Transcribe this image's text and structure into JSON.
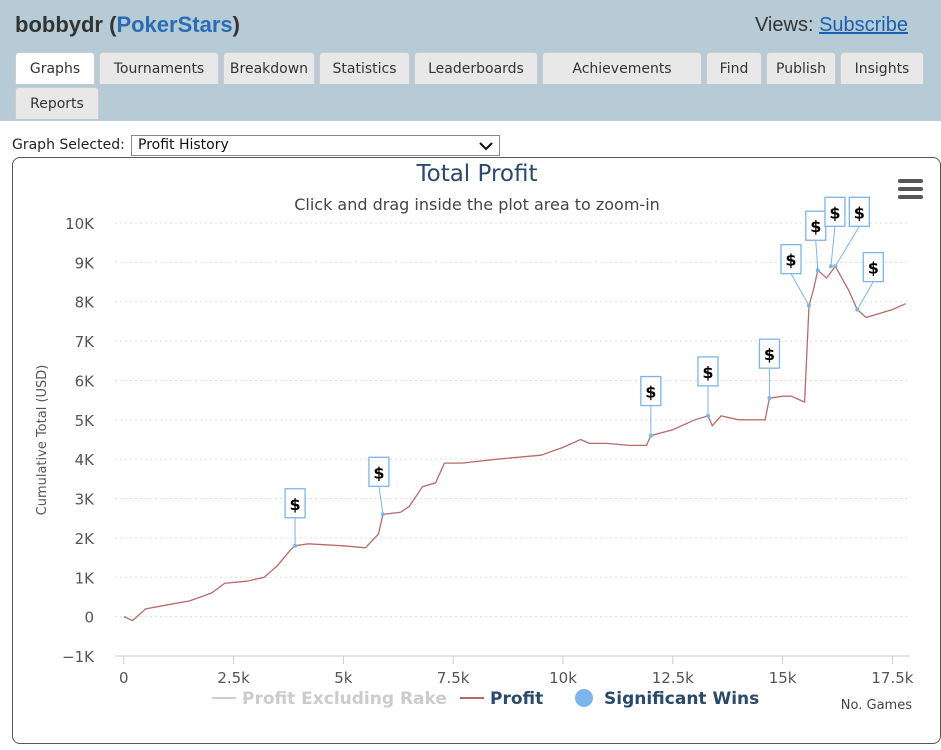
{
  "header": {
    "title_user": "bobbydr (",
    "title_site": "PokerStars",
    "title_end": ")",
    "views_label": "Views:",
    "views_link": "Subscribe"
  },
  "tabs": [
    "Graphs",
    "Tournaments",
    "Breakdown",
    "Statistics",
    "Leaderboards",
    "Achievements",
    "Find",
    "Publish",
    "Insights",
    "Reports"
  ],
  "selector": {
    "label": "Graph Selected:",
    "value": "Profit History"
  },
  "chart_data": {
    "type": "line",
    "title": "Total Profit",
    "subtitle": "Click and drag inside the plot area to zoom-in",
    "y_label": "Cumulative Total (USD)",
    "x_label": "No. Games",
    "x": [
      0,
      200,
      500,
      1000,
      1500,
      2000,
      2300,
      2800,
      3200,
      3500,
      3800,
      3900,
      4200,
      5000,
      5500,
      5800,
      5900,
      6300,
      6500,
      6800,
      7100,
      7300,
      7700,
      8500,
      9500,
      10000,
      10400,
      10600,
      11000,
      11500,
      11900,
      12000,
      12500,
      13000,
      13300,
      13400,
      13600,
      14000,
      14600,
      14700,
      15000,
      15200,
      15400,
      15500,
      15600,
      15700,
      15800,
      16000,
      16200,
      16500,
      16700,
      16900,
      17200,
      17500,
      17800
    ],
    "series": [
      {
        "name": "Profit Excluding Rake",
        "color": "#cccccc",
        "visible": false
      },
      {
        "name": "Profit",
        "color": "#b96b6b",
        "values": [
          0,
          -100,
          200,
          300,
          400,
          600,
          850,
          900,
          1000,
          1300,
          1700,
          1800,
          1850,
          1800,
          1750,
          2100,
          2600,
          2650,
          2800,
          3300,
          3400,
          3900,
          3900,
          4000,
          4100,
          4300,
          4500,
          4400,
          4400,
          4350,
          4350,
          4600,
          4750,
          5000,
          5100,
          4850,
          5100,
          5000,
          5000,
          5550,
          5600,
          5600,
          5500,
          5450,
          7900,
          8300,
          8800,
          8600,
          8900,
          8300,
          7800,
          7600,
          7700,
          7800,
          7950
        ]
      },
      {
        "name": "Significant Wins",
        "color": "#7cb5ec",
        "marker_label": "$",
        "x": [
          3900,
          5900,
          12000,
          13300,
          14700,
          15600,
          15800,
          16100,
          16200,
          16700
        ],
        "values": [
          1800,
          2600,
          4600,
          5100,
          5550,
          7900,
          8800,
          8900,
          8900,
          7800
        ]
      }
    ],
    "xlim": [
      -200,
      17900
    ],
    "ylim": [
      -1000,
      10000
    ],
    "xticks": [
      0,
      {
        "value": 2500,
        "label": "2.5k"
      },
      {
        "value": 5000,
        "label": "5k"
      },
      {
        "value": 7500,
        "label": "7.5k"
      },
      {
        "value": 10000,
        "label": "10k"
      },
      {
        "value": 12500,
        "label": "12.5k"
      },
      {
        "value": 15000,
        "label": "15k"
      },
      {
        "value": 17500,
        "label": "17.5k"
      }
    ],
    "yticks": [
      {
        "value": -1000,
        "label": "−1K"
      },
      0,
      {
        "value": 1000,
        "label": "1K"
      },
      {
        "value": 2000,
        "label": "2K"
      },
      {
        "value": 3000,
        "label": "3K"
      },
      {
        "value": 4000,
        "label": "4K"
      },
      {
        "value": 5000,
        "label": "5K"
      },
      {
        "value": 6000,
        "label": "6K"
      },
      {
        "value": 7000,
        "label": "7K"
      },
      {
        "value": 8000,
        "label": "8K"
      },
      {
        "value": 9000,
        "label": "9K"
      },
      {
        "value": 10000,
        "label": "10K"
      }
    ],
    "grid": true
  }
}
